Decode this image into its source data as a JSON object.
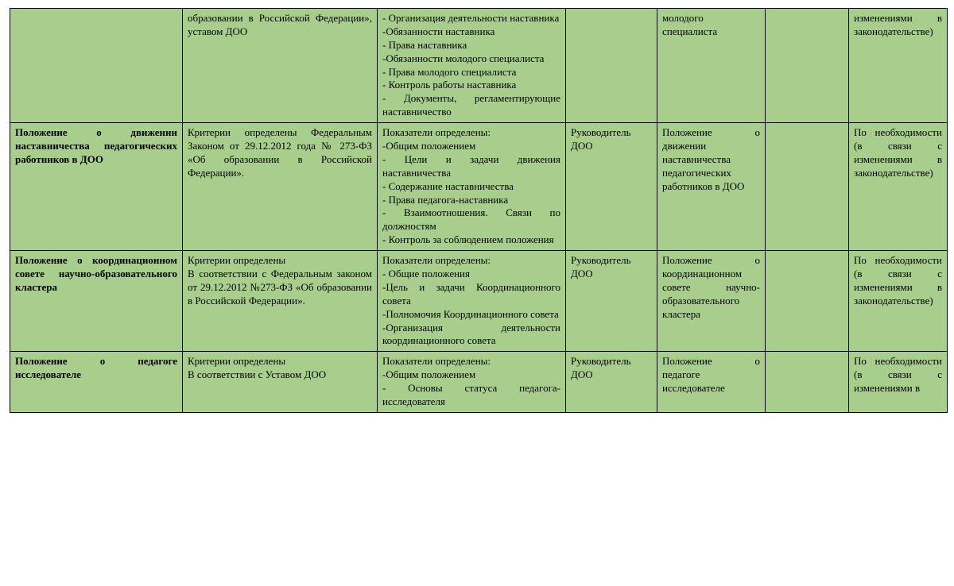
{
  "colors": {
    "cell_bg": "#a8ce8e",
    "border": "#000000",
    "text": "#000000"
  },
  "fontsize_pt": 10,
  "rows": [
    {
      "c1": "",
      "c2": "образовании в Российской Федерации», уставом ДОО",
      "c3_lines": [
        "- Организация деятельности наставника",
        "-Обязанности наставника",
        "- Права наставника",
        "-Обязанности молодого специалиста",
        "- Права молодого специалиста",
        "- Контроль работы наставника",
        "- Документы, регламентирующие наставничество"
      ],
      "c4": "",
      "c5": "молодого специалиста",
      "c6": "",
      "c7": "изменениями в законодательстве)"
    },
    {
      "c1": "Положение о движении наставничества педагогических работников в ДОО",
      "c2": "Критерии определены Федеральным Законом от 29.12.2012 года № 273-ФЗ «Об образовании в Российской Федерации».",
      "c3_head": "Показатели определены:",
      "c3_lines": [
        "-Общим положением",
        "- Цели и задачи движения наставничества",
        "- Содержание наставничества",
        "- Права педагога-наставника",
        "- Взаимоотношения. Связи по должностям",
        "- Контроль за соблюдением положения"
      ],
      "c4": "Руководитель ДОО",
      "c5": "Положение о движении наставничества педагогических работников в ДОО",
      "c6": "",
      "c7": "По необходимости (в связи с изменениями в законодательстве)"
    },
    {
      "c1": "Положение о координационном совете научно-образовательного кластера",
      "c2_head": "Критерии определены",
      "c2": "В соответствии с Федеральным законом от 29.12.2012 №273-ФЗ «Об образовании в Российской Федерации».",
      "c3_head": "Показатели определены:",
      "c3_lines": [
        "- Общие положения",
        "-Цель и задачи Координационного совета",
        "-Полномочия Координационного совета",
        "-Организация деятельности координационного совета"
      ],
      "c4": "Руководитель ДОО",
      "c5": "Положение о координационном совете научно-образовательного кластера",
      "c6": "",
      "c7": "По необходимости (в связи с изменениями в законодательстве)"
    },
    {
      "c1": "Положение о педагоге исследователе",
      "c2_head": "Критерии определены",
      "c2": "В соответствии с Уставом ДОО",
      "c3_head": "Показатели определены:",
      "c3_lines": [
        "-Общим положением",
        "- Основы статуса педагога-исследователя"
      ],
      "c4": "Руководитель ДОО",
      "c5": "Положение о педагоге исследователе",
      "c6": "",
      "c7": "По необходимости (в связи с изменениями в"
    }
  ]
}
